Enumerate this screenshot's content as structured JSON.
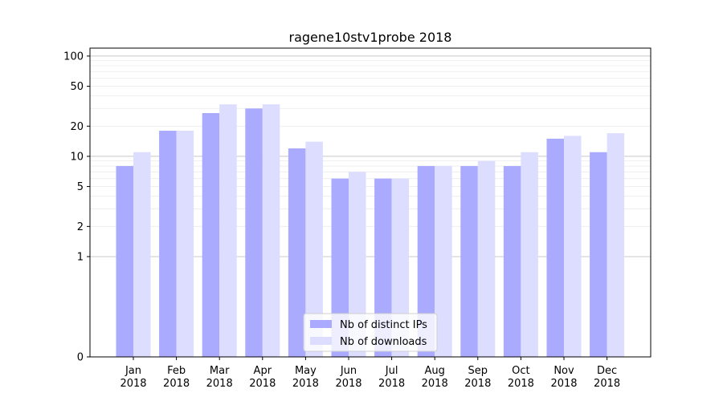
{
  "chart_data": {
    "type": "bar",
    "title": "ragene10stv1probe 2018",
    "xlabel": "",
    "ylabel": "",
    "categories": [
      [
        "Jan",
        "2018"
      ],
      [
        "Feb",
        "2018"
      ],
      [
        "Mar",
        "2018"
      ],
      [
        "Apr",
        "2018"
      ],
      [
        "May",
        "2018"
      ],
      [
        "Jun",
        "2018"
      ],
      [
        "Jul",
        "2018"
      ],
      [
        "Aug",
        "2018"
      ],
      [
        "Sep",
        "2018"
      ],
      [
        "Oct",
        "2018"
      ],
      [
        "Nov",
        "2018"
      ],
      [
        "Dec",
        "2018"
      ]
    ],
    "series": [
      {
        "name": "Nb of distinct IPs",
        "color": "#aaaaff",
        "values": [
          8,
          18,
          27,
          30,
          12,
          6,
          6,
          8,
          8,
          8,
          15,
          11
        ]
      },
      {
        "name": "Nb of downloads",
        "color": "#ddddff",
        "values": [
          11,
          18,
          33,
          33,
          14,
          7,
          6,
          8,
          9,
          11,
          16,
          17
        ]
      }
    ],
    "scale": "symlog",
    "ylim": [
      0,
      120
    ],
    "yticks": [
      0,
      1,
      2,
      5,
      10,
      20,
      50,
      100
    ],
    "ytick_labels": [
      "0",
      "1",
      "2",
      "5",
      "10",
      "20",
      "50",
      "100"
    ],
    "grid": true,
    "legend_position": "bottom-center"
  }
}
